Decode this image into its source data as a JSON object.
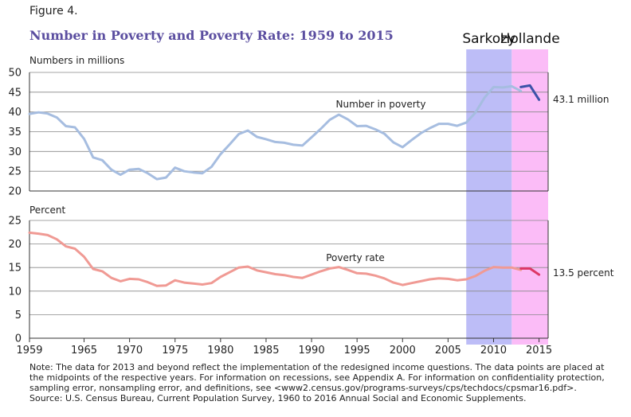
{
  "figure_label": "Figure 4.",
  "title": "Number in Poverty and Poverty Rate: 1959 to 2015",
  "footnote": [
    "Note: The data for 2013 and beyond reflect the implementation of the redesigned income questions. The data points are placed at",
    "the midpoints of the respective years. For information on recessions, see Appendix A. For information on confidentiality protection,",
    "sampling error, nonsampling error, and definitions, see <www2.census.gov/programs-surveys/cps/techdocs/cpsmar16.pdf>.",
    "Source: U.S. Census Bureau, Current Population Survey, 1960 to 2016 Annual Social and Economic Supplements."
  ],
  "colors": {
    "number_series": "#a6bde0",
    "number_series_recent": "#3c52a8",
    "rate_series": "#f09a94",
    "rate_series_recent": "#dd3766",
    "sarkozy_band": "#bdbdf7",
    "hollande_band": "#fbbcf7",
    "title": "#5b4ea0"
  },
  "chart_data": [
    {
      "type": "line",
      "ylabel": "Numbers in millions",
      "ylim": [
        20,
        50
      ],
      "yticks": [
        "20",
        "25",
        "30",
        "35",
        "40",
        "45",
        "50"
      ],
      "xlim": [
        1959,
        2016
      ],
      "grid": true,
      "annotation": "Number in poverty",
      "end_label": "43.1 million",
      "x": [
        1959,
        1960,
        1961,
        1962,
        1963,
        1964,
        1965,
        1966,
        1967,
        1968,
        1969,
        1970,
        1971,
        1972,
        1973,
        1974,
        1975,
        1976,
        1977,
        1978,
        1979,
        1980,
        1981,
        1982,
        1983,
        1984,
        1985,
        1986,
        1987,
        1988,
        1989,
        1990,
        1991,
        1992,
        1993,
        1994,
        1995,
        1996,
        1997,
        1998,
        1999,
        2000,
        2001,
        2002,
        2003,
        2004,
        2005,
        2006,
        2007,
        2008,
        2009,
        2010,
        2011,
        2012,
        2013
      ],
      "values": [
        39.5,
        39.9,
        39.6,
        38.6,
        36.4,
        36.1,
        33.2,
        28.5,
        27.8,
        25.4,
        24.1,
        25.4,
        25.6,
        24.5,
        23.0,
        23.4,
        25.9,
        25.0,
        24.7,
        24.5,
        26.1,
        29.3,
        31.8,
        34.4,
        35.3,
        33.7,
        33.1,
        32.4,
        32.2,
        31.7,
        31.5,
        33.6,
        35.7,
        38.0,
        39.3,
        38.1,
        36.4,
        36.5,
        35.6,
        34.5,
        32.3,
        31.1,
        32.9,
        34.6,
        35.9,
        37.0,
        37.0,
        36.5,
        37.3,
        39.8,
        43.6,
        46.3,
        46.2,
        46.5,
        45.3
      ],
      "recent_x": [
        2013,
        2014,
        2015
      ],
      "recent_values": [
        46.3,
        46.7,
        43.1
      ],
      "presidents": [
        {
          "name": "Sarkozy",
          "start": 2007,
          "end": 2012
        },
        {
          "name": "Hollande",
          "start": 2012,
          "end": 2016
        }
      ]
    },
    {
      "type": "line",
      "ylabel": "Percent",
      "ylim": [
        0,
        25
      ],
      "yticks": [
        "0",
        "5",
        "10",
        "15",
        "20",
        "25"
      ],
      "xlim": [
        1959,
        2016
      ],
      "xticks": [
        "1959",
        "1965",
        "1970",
        "1975",
        "1980",
        "1985",
        "1990",
        "1995",
        "2000",
        "2005",
        "2010",
        "2015"
      ],
      "grid": true,
      "annotation": "Poverty rate",
      "end_label": "13.5 percent",
      "x": [
        1959,
        1960,
        1961,
        1962,
        1963,
        1964,
        1965,
        1966,
        1967,
        1968,
        1969,
        1970,
        1971,
        1972,
        1973,
        1974,
        1975,
        1976,
        1977,
        1978,
        1979,
        1980,
        1981,
        1982,
        1983,
        1984,
        1985,
        1986,
        1987,
        1988,
        1989,
        1990,
        1991,
        1992,
        1993,
        1994,
        1995,
        1996,
        1997,
        1998,
        1999,
        2000,
        2001,
        2002,
        2003,
        2004,
        2005,
        2006,
        2007,
        2008,
        2009,
        2010,
        2011,
        2012,
        2013
      ],
      "values": [
        22.4,
        22.2,
        21.9,
        21.0,
        19.5,
        19.0,
        17.3,
        14.7,
        14.2,
        12.8,
        12.1,
        12.6,
        12.5,
        11.9,
        11.1,
        11.2,
        12.3,
        11.8,
        11.6,
        11.4,
        11.7,
        13.0,
        14.0,
        15.0,
        15.2,
        14.4,
        14.0,
        13.6,
        13.4,
        13.0,
        12.8,
        13.5,
        14.2,
        14.8,
        15.1,
        14.5,
        13.8,
        13.7,
        13.3,
        12.7,
        11.8,
        11.3,
        11.7,
        12.1,
        12.5,
        12.7,
        12.6,
        12.3,
        12.5,
        13.2,
        14.3,
        15.1,
        15.0,
        15.0,
        14.5
      ],
      "recent_x": [
        2013,
        2014,
        2015
      ],
      "recent_values": [
        14.8,
        14.8,
        13.5
      ],
      "presidents": [
        {
          "name": "Sarkozy",
          "start": 2007,
          "end": 2012
        },
        {
          "name": "Hollande",
          "start": 2012,
          "end": 2016
        }
      ]
    }
  ]
}
